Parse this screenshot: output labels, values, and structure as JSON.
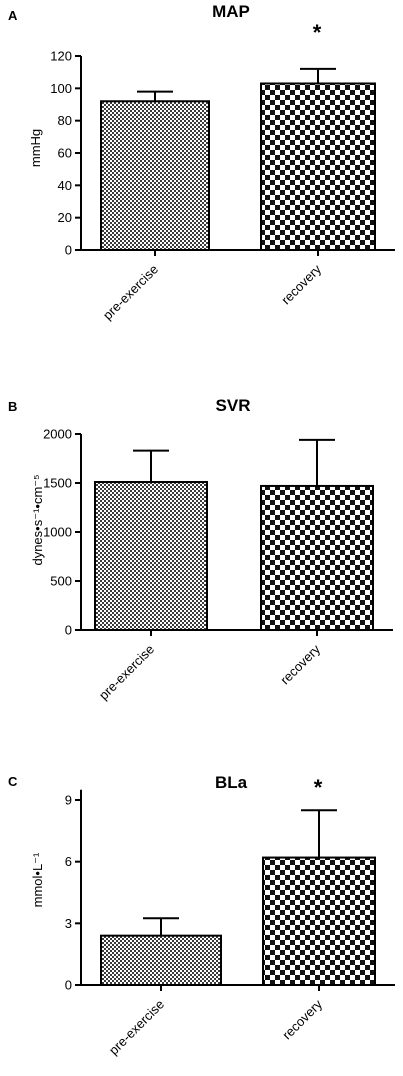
{
  "chart_data": [
    {
      "type": "bar",
      "panel": "A",
      "title": "MAP",
      "ylabel": "mmHg",
      "categories": [
        "pre-exercise",
        "recovery"
      ],
      "values": [
        92,
        103
      ],
      "errors": [
        6,
        9
      ],
      "significance": [
        "",
        "*"
      ],
      "ylim": [
        0,
        120
      ],
      "yticks": [
        0,
        20,
        40,
        60,
        80,
        100,
        120
      ],
      "grid": false,
      "patterns": [
        "fine-check",
        "coarse-check"
      ]
    },
    {
      "type": "bar",
      "panel": "B",
      "title": "SVR",
      "ylabel": "dynes•s⁻¹•cm⁻⁵",
      "categories": [
        "pre-exercise",
        "recovery"
      ],
      "values": [
        1510,
        1470
      ],
      "errors": [
        320,
        470
      ],
      "significance": [
        "",
        ""
      ],
      "ylim": [
        0,
        2000
      ],
      "yticks": [
        0,
        500,
        1000,
        1500,
        2000
      ],
      "grid": false,
      "patterns": [
        "fine-check",
        "coarse-check"
      ]
    },
    {
      "type": "bar",
      "panel": "C",
      "title": "BLa",
      "ylabel": "mmol•L⁻¹",
      "categories": [
        "pre-exercise",
        "recovery"
      ],
      "values": [
        2.4,
        6.2
      ],
      "errors": [
        0.85,
        2.3
      ],
      "significance": [
        "",
        "*"
      ],
      "ylim": [
        0,
        9.5
      ],
      "yticks": [
        0,
        3,
        6,
        9
      ],
      "grid": false,
      "patterns": [
        "fine-check",
        "coarse-check"
      ]
    }
  ]
}
